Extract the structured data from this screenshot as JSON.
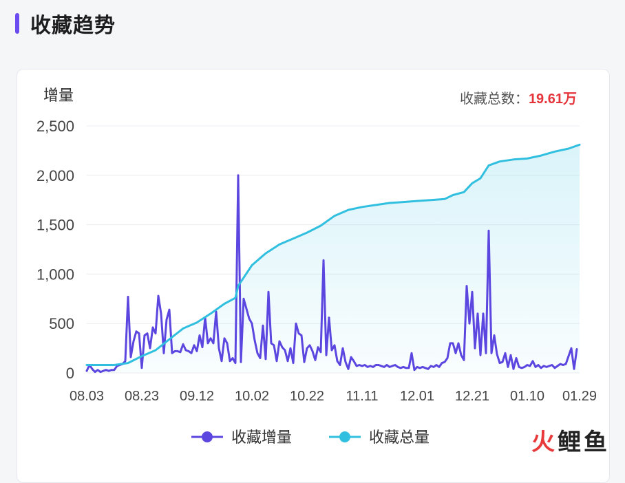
{
  "header": {
    "title": "收藏趋势"
  },
  "total": {
    "label": "收藏总数：",
    "value": "19.61万"
  },
  "colors": {
    "accent": "#6a4cf0",
    "increment": "#5b46e0",
    "total": "#31bfe0",
    "total_value": "#e5343a",
    "watermark_red": "#e83a3a",
    "watermark_dark": "#222222"
  },
  "watermark": "火鲤鱼",
  "chart_data": {
    "type": "line",
    "ylabel": "增量",
    "ylim": [
      0,
      2500
    ],
    "yticks": [
      0,
      500,
      1000,
      1500,
      2000,
      2500
    ],
    "ytick_labels": [
      "0",
      "500",
      "1,000",
      "1,500",
      "2,000",
      "2,500"
    ],
    "xtick_labels": [
      "08.03",
      "08.23",
      "09.12",
      "10.02",
      "10.22",
      "11.11",
      "12.01",
      "12.21",
      "01.10",
      "01.29"
    ],
    "x_range_days": [
      0,
      179
    ],
    "xtick_days": [
      0,
      20,
      40,
      60,
      80,
      100,
      120,
      140,
      160,
      179
    ],
    "grid": true,
    "legend_position": "bottom",
    "series": [
      {
        "name": "收藏增量",
        "color": "#5b46e0",
        "points": [
          [
            0,
            20
          ],
          [
            1,
            80
          ],
          [
            2,
            40
          ],
          [
            3,
            10
          ],
          [
            4,
            30
          ],
          [
            5,
            10
          ],
          [
            6,
            20
          ],
          [
            7,
            30
          ],
          [
            8,
            20
          ],
          [
            9,
            30
          ],
          [
            10,
            30
          ],
          [
            11,
            70
          ],
          [
            12,
            80
          ],
          [
            13,
            90
          ],
          [
            14,
            120
          ],
          [
            15,
            770
          ],
          [
            16,
            160
          ],
          [
            17,
            320
          ],
          [
            18,
            420
          ],
          [
            19,
            400
          ],
          [
            20,
            50
          ],
          [
            21,
            380
          ],
          [
            22,
            400
          ],
          [
            23,
            250
          ],
          [
            24,
            460
          ],
          [
            25,
            400
          ],
          [
            26,
            780
          ],
          [
            27,
            600
          ],
          [
            28,
            200
          ],
          [
            29,
            540
          ],
          [
            30,
            640
          ],
          [
            31,
            200
          ],
          [
            32,
            220
          ],
          [
            33,
            220
          ],
          [
            34,
            210
          ],
          [
            35,
            290
          ],
          [
            36,
            230
          ],
          [
            37,
            220
          ],
          [
            38,
            200
          ],
          [
            39,
            280
          ],
          [
            40,
            220
          ],
          [
            41,
            380
          ],
          [
            42,
            260
          ],
          [
            43,
            560
          ],
          [
            44,
            300
          ],
          [
            45,
            350
          ],
          [
            46,
            300
          ],
          [
            47,
            620
          ],
          [
            48,
            250
          ],
          [
            49,
            120
          ],
          [
            50,
            350
          ],
          [
            51,
            300
          ],
          [
            52,
            120
          ],
          [
            53,
            150
          ],
          [
            54,
            100
          ],
          [
            55,
            2000
          ],
          [
            56,
            110
          ],
          [
            57,
            750
          ],
          [
            58,
            650
          ],
          [
            59,
            550
          ],
          [
            60,
            500
          ],
          [
            61,
            330
          ],
          [
            62,
            200
          ],
          [
            63,
            150
          ],
          [
            64,
            480
          ],
          [
            65,
            140
          ],
          [
            66,
            820
          ],
          [
            67,
            300
          ],
          [
            68,
            280
          ],
          [
            69,
            120
          ],
          [
            70,
            320
          ],
          [
            71,
            260
          ],
          [
            72,
            230
          ],
          [
            73,
            120
          ],
          [
            74,
            250
          ],
          [
            75,
            100
          ],
          [
            76,
            500
          ],
          [
            77,
            400
          ],
          [
            78,
            380
          ],
          [
            79,
            110
          ],
          [
            80,
            250
          ],
          [
            81,
            280
          ],
          [
            82,
            220
          ],
          [
            83,
            130
          ],
          [
            84,
            260
          ],
          [
            85,
            210
          ],
          [
            86,
            1140
          ],
          [
            87,
            180
          ],
          [
            88,
            560
          ],
          [
            89,
            230
          ],
          [
            90,
            280
          ],
          [
            91,
            120
          ],
          [
            92,
            80
          ],
          [
            93,
            250
          ],
          [
            94,
            110
          ],
          [
            95,
            40
          ],
          [
            96,
            160
          ],
          [
            97,
            120
          ],
          [
            98,
            70
          ],
          [
            99,
            80
          ],
          [
            100,
            70
          ],
          [
            101,
            80
          ],
          [
            102,
            60
          ],
          [
            103,
            70
          ],
          [
            104,
            60
          ],
          [
            105,
            80
          ],
          [
            106,
            80
          ],
          [
            107,
            70
          ],
          [
            108,
            60
          ],
          [
            109,
            80
          ],
          [
            110,
            60
          ],
          [
            111,
            70
          ],
          [
            112,
            80
          ],
          [
            113,
            60
          ],
          [
            114,
            50
          ],
          [
            115,
            60
          ],
          [
            116,
            50
          ],
          [
            117,
            50
          ],
          [
            118,
            200
          ],
          [
            119,
            30
          ],
          [
            120,
            60
          ],
          [
            121,
            50
          ],
          [
            122,
            60
          ],
          [
            123,
            50
          ],
          [
            124,
            40
          ],
          [
            125,
            70
          ],
          [
            126,
            60
          ],
          [
            127,
            80
          ],
          [
            128,
            60
          ],
          [
            129,
            100
          ],
          [
            130,
            110
          ],
          [
            131,
            150
          ],
          [
            132,
            300
          ],
          [
            133,
            300
          ],
          [
            134,
            200
          ],
          [
            135,
            300
          ],
          [
            136,
            180
          ],
          [
            137,
            130
          ],
          [
            138,
            880
          ],
          [
            139,
            500
          ],
          [
            140,
            820
          ],
          [
            141,
            250
          ],
          [
            142,
            600
          ],
          [
            143,
            180
          ],
          [
            144,
            600
          ],
          [
            145,
            200
          ],
          [
            146,
            1440
          ],
          [
            147,
            200
          ],
          [
            148,
            380
          ],
          [
            149,
            190
          ],
          [
            150,
            100
          ],
          [
            151,
            110
          ],
          [
            152,
            200
          ],
          [
            153,
            60
          ],
          [
            154,
            180
          ],
          [
            155,
            40
          ],
          [
            156,
            150
          ],
          [
            157,
            60
          ],
          [
            158,
            50
          ],
          [
            159,
            60
          ],
          [
            160,
            80
          ],
          [
            161,
            70
          ],
          [
            162,
            120
          ],
          [
            163,
            60
          ],
          [
            164,
            80
          ],
          [
            165,
            50
          ],
          [
            166,
            70
          ],
          [
            167,
            60
          ],
          [
            168,
            70
          ],
          [
            169,
            80
          ],
          [
            170,
            50
          ],
          [
            171,
            70
          ],
          [
            172,
            90
          ],
          [
            173,
            80
          ],
          [
            174,
            90
          ],
          [
            175,
            170
          ],
          [
            176,
            250
          ],
          [
            177,
            40
          ],
          [
            178,
            240
          ]
        ]
      },
      {
        "name": "收藏总量",
        "color": "#31bfe0",
        "points": [
          [
            0,
            80
          ],
          [
            10,
            80
          ],
          [
            15,
            100
          ],
          [
            20,
            170
          ],
          [
            25,
            230
          ],
          [
            30,
            340
          ],
          [
            35,
            450
          ],
          [
            40,
            510
          ],
          [
            45,
            600
          ],
          [
            50,
            700
          ],
          [
            54,
            760
          ],
          [
            55,
            880
          ],
          [
            60,
            1090
          ],
          [
            65,
            1210
          ],
          [
            70,
            1300
          ],
          [
            75,
            1360
          ],
          [
            80,
            1420
          ],
          [
            85,
            1490
          ],
          [
            90,
            1590
          ],
          [
            95,
            1650
          ],
          [
            100,
            1680
          ],
          [
            105,
            1700
          ],
          [
            110,
            1720
          ],
          [
            115,
            1730
          ],
          [
            120,
            1740
          ],
          [
            125,
            1750
          ],
          [
            130,
            1760
          ],
          [
            133,
            1800
          ],
          [
            137,
            1830
          ],
          [
            140,
            1920
          ],
          [
            143,
            1970
          ],
          [
            146,
            2100
          ],
          [
            150,
            2140
          ],
          [
            155,
            2160
          ],
          [
            160,
            2170
          ],
          [
            165,
            2200
          ],
          [
            170,
            2240
          ],
          [
            175,
            2270
          ],
          [
            179,
            2310
          ]
        ]
      }
    ]
  }
}
